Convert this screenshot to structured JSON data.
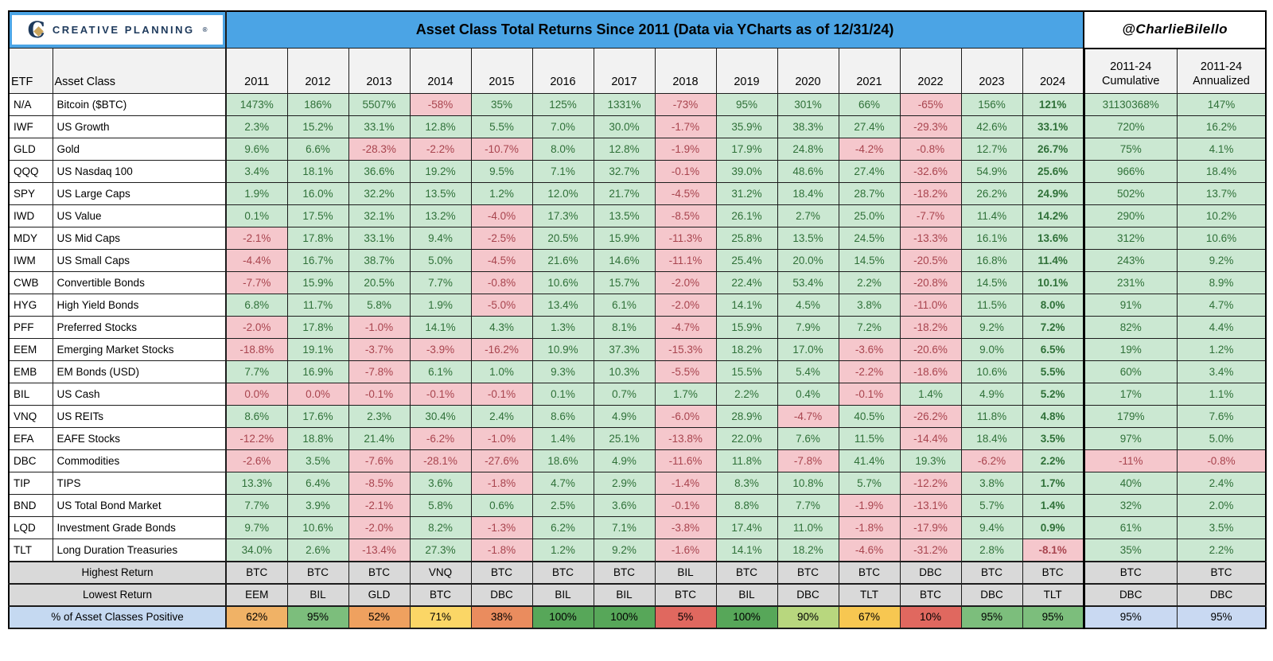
{
  "brand": {
    "name": "CREATIVE PLANNING",
    "reg": "®",
    "logo_letter": "C"
  },
  "header": {
    "title": "Asset Class Total Returns Since 2011 (Data via YCharts as of 12/31/24)",
    "handle": "@CharlieBilello"
  },
  "colors": {
    "header_blue": "#4BA4E5",
    "positive_bg": "#CBE8D2",
    "positive_text": "#2F7038",
    "negative_bg": "#F5C7CC",
    "negative_text": "#A8444E",
    "summary_gray": "#D9D9D9",
    "label_blue": "#C5D9F1",
    "positive_summary_blue": "#C9D9F2",
    "year2024_header_gray": "#BDBDBD",
    "brand_navy": "#1E3A5C",
    "brand_gold": "#C9A45C"
  },
  "chart_data": {
    "type": "table",
    "title": "Asset Class Total Returns Since 2011 (Data via YCharts as of 12/31/24)",
    "columns": {
      "etf": "ETF",
      "asset_class": "Asset Class",
      "years": [
        "2011",
        "2012",
        "2013",
        "2014",
        "2015",
        "2016",
        "2017",
        "2018",
        "2019",
        "2020",
        "2021",
        "2022",
        "2023",
        "2024"
      ],
      "cumulative_line1": "2011-24",
      "cumulative_line2": "Cumulative",
      "annualized_line1": "2011-24",
      "annualized_line2": "Annualized"
    },
    "series": [
      {
        "etf": "N/A",
        "asset": "Bitcoin ($BTC)",
        "values": [
          "1473%",
          "186%",
          "5507%",
          "-58%",
          "35%",
          "125%",
          "1331%",
          "-73%",
          "95%",
          "301%",
          "66%",
          "-65%",
          "156%",
          "121%"
        ],
        "cumulative": "31130368%",
        "annualized": "147%"
      },
      {
        "etf": "IWF",
        "asset": "US Growth",
        "values": [
          "2.3%",
          "15.2%",
          "33.1%",
          "12.8%",
          "5.5%",
          "7.0%",
          "30.0%",
          "-1.7%",
          "35.9%",
          "38.3%",
          "27.4%",
          "-29.3%",
          "42.6%",
          "33.1%"
        ],
        "cumulative": "720%",
        "annualized": "16.2%"
      },
      {
        "etf": "GLD",
        "asset": "Gold",
        "values": [
          "9.6%",
          "6.6%",
          "-28.3%",
          "-2.2%",
          "-10.7%",
          "8.0%",
          "12.8%",
          "-1.9%",
          "17.9%",
          "24.8%",
          "-4.2%",
          "-0.8%",
          "12.7%",
          "26.7%"
        ],
        "cumulative": "75%",
        "annualized": "4.1%"
      },
      {
        "etf": "QQQ",
        "asset": "US Nasdaq 100",
        "values": [
          "3.4%",
          "18.1%",
          "36.6%",
          "19.2%",
          "9.5%",
          "7.1%",
          "32.7%",
          "-0.1%",
          "39.0%",
          "48.6%",
          "27.4%",
          "-32.6%",
          "54.9%",
          "25.6%"
        ],
        "cumulative": "966%",
        "annualized": "18.4%"
      },
      {
        "etf": "SPY",
        "asset": "US Large Caps",
        "values": [
          "1.9%",
          "16.0%",
          "32.2%",
          "13.5%",
          "1.2%",
          "12.0%",
          "21.7%",
          "-4.5%",
          "31.2%",
          "18.4%",
          "28.7%",
          "-18.2%",
          "26.2%",
          "24.9%"
        ],
        "cumulative": "502%",
        "annualized": "13.7%"
      },
      {
        "etf": "IWD",
        "asset": "US Value",
        "values": [
          "0.1%",
          "17.5%",
          "32.1%",
          "13.2%",
          "-4.0%",
          "17.3%",
          "13.5%",
          "-8.5%",
          "26.1%",
          "2.7%",
          "25.0%",
          "-7.7%",
          "11.4%",
          "14.2%"
        ],
        "cumulative": "290%",
        "annualized": "10.2%"
      },
      {
        "etf": "MDY",
        "asset": "US Mid Caps",
        "values": [
          "-2.1%",
          "17.8%",
          "33.1%",
          "9.4%",
          "-2.5%",
          "20.5%",
          "15.9%",
          "-11.3%",
          "25.8%",
          "13.5%",
          "24.5%",
          "-13.3%",
          "16.1%",
          "13.6%"
        ],
        "cumulative": "312%",
        "annualized": "10.6%"
      },
      {
        "etf": "IWM",
        "asset": "US Small Caps",
        "values": [
          "-4.4%",
          "16.7%",
          "38.7%",
          "5.0%",
          "-4.5%",
          "21.6%",
          "14.6%",
          "-11.1%",
          "25.4%",
          "20.0%",
          "14.5%",
          "-20.5%",
          "16.8%",
          "11.4%"
        ],
        "cumulative": "243%",
        "annualized": "9.2%"
      },
      {
        "etf": "CWB",
        "asset": "Convertible Bonds",
        "values": [
          "-7.7%",
          "15.9%",
          "20.5%",
          "7.7%",
          "-0.8%",
          "10.6%",
          "15.7%",
          "-2.0%",
          "22.4%",
          "53.4%",
          "2.2%",
          "-20.8%",
          "14.5%",
          "10.1%"
        ],
        "cumulative": "231%",
        "annualized": "8.9%"
      },
      {
        "etf": "HYG",
        "asset": "High Yield Bonds",
        "values": [
          "6.8%",
          "11.7%",
          "5.8%",
          "1.9%",
          "-5.0%",
          "13.4%",
          "6.1%",
          "-2.0%",
          "14.1%",
          "4.5%",
          "3.8%",
          "-11.0%",
          "11.5%",
          "8.0%"
        ],
        "cumulative": "91%",
        "annualized": "4.7%"
      },
      {
        "etf": "PFF",
        "asset": "Preferred Stocks",
        "values": [
          "-2.0%",
          "17.8%",
          "-1.0%",
          "14.1%",
          "4.3%",
          "1.3%",
          "8.1%",
          "-4.7%",
          "15.9%",
          "7.9%",
          "7.2%",
          "-18.2%",
          "9.2%",
          "7.2%"
        ],
        "cumulative": "82%",
        "annualized": "4.4%"
      },
      {
        "etf": "EEM",
        "asset": "Emerging Market Stocks",
        "values": [
          "-18.8%",
          "19.1%",
          "-3.7%",
          "-3.9%",
          "-16.2%",
          "10.9%",
          "37.3%",
          "-15.3%",
          "18.2%",
          "17.0%",
          "-3.6%",
          "-20.6%",
          "9.0%",
          "6.5%"
        ],
        "cumulative": "19%",
        "annualized": "1.2%"
      },
      {
        "etf": "EMB",
        "asset": "EM Bonds (USD)",
        "values": [
          "7.7%",
          "16.9%",
          "-7.8%",
          "6.1%",
          "1.0%",
          "9.3%",
          "10.3%",
          "-5.5%",
          "15.5%",
          "5.4%",
          "-2.2%",
          "-18.6%",
          "10.6%",
          "5.5%"
        ],
        "cumulative": "60%",
        "annualized": "3.4%"
      },
      {
        "etf": "BIL",
        "asset": "US Cash",
        "values": [
          "0.0%",
          "0.0%",
          "-0.1%",
          "-0.1%",
          "-0.1%",
          "0.1%",
          "0.7%",
          "1.7%",
          "2.2%",
          "0.4%",
          "-0.1%",
          "1.4%",
          "4.9%",
          "5.2%"
        ],
        "cumulative": "17%",
        "annualized": "1.1%"
      },
      {
        "etf": "VNQ",
        "asset": "US REITs",
        "values": [
          "8.6%",
          "17.6%",
          "2.3%",
          "30.4%",
          "2.4%",
          "8.6%",
          "4.9%",
          "-6.0%",
          "28.9%",
          "-4.7%",
          "40.5%",
          "-26.2%",
          "11.8%",
          "4.8%"
        ],
        "cumulative": "179%",
        "annualized": "7.6%"
      },
      {
        "etf": "EFA",
        "asset": "EAFE Stocks",
        "values": [
          "-12.2%",
          "18.8%",
          "21.4%",
          "-6.2%",
          "-1.0%",
          "1.4%",
          "25.1%",
          "-13.8%",
          "22.0%",
          "7.6%",
          "11.5%",
          "-14.4%",
          "18.4%",
          "3.5%"
        ],
        "cumulative": "97%",
        "annualized": "5.0%"
      },
      {
        "etf": "DBC",
        "asset": "Commodities",
        "values": [
          "-2.6%",
          "3.5%",
          "-7.6%",
          "-28.1%",
          "-27.6%",
          "18.6%",
          "4.9%",
          "-11.6%",
          "11.8%",
          "-7.8%",
          "41.4%",
          "19.3%",
          "-6.2%",
          "2.2%"
        ],
        "cumulative": "-11%",
        "annualized": "-0.8%"
      },
      {
        "etf": "TIP",
        "asset": "TIPS",
        "values": [
          "13.3%",
          "6.4%",
          "-8.5%",
          "3.6%",
          "-1.8%",
          "4.7%",
          "2.9%",
          "-1.4%",
          "8.3%",
          "10.8%",
          "5.7%",
          "-12.2%",
          "3.8%",
          "1.7%"
        ],
        "cumulative": "40%",
        "annualized": "2.4%"
      },
      {
        "etf": "BND",
        "asset": "US Total Bond Market",
        "values": [
          "7.7%",
          "3.9%",
          "-2.1%",
          "5.8%",
          "0.6%",
          "2.5%",
          "3.6%",
          "-0.1%",
          "8.8%",
          "7.7%",
          "-1.9%",
          "-13.1%",
          "5.7%",
          "1.4%"
        ],
        "cumulative": "32%",
        "annualized": "2.0%"
      },
      {
        "etf": "LQD",
        "asset": "Investment Grade Bonds",
        "values": [
          "9.7%",
          "10.6%",
          "-2.0%",
          "8.2%",
          "-1.3%",
          "6.2%",
          "7.1%",
          "-3.8%",
          "17.4%",
          "11.0%",
          "-1.8%",
          "-17.9%",
          "9.4%",
          "0.9%"
        ],
        "cumulative": "61%",
        "annualized": "3.5%"
      },
      {
        "etf": "TLT",
        "asset": "Long Duration Treasuries",
        "values": [
          "34.0%",
          "2.6%",
          "-13.4%",
          "27.3%",
          "-1.8%",
          "1.2%",
          "9.2%",
          "-1.6%",
          "14.1%",
          "18.2%",
          "-4.6%",
          "-31.2%",
          "2.8%",
          "-8.1%"
        ],
        "cumulative": "35%",
        "annualized": "2.2%"
      }
    ],
    "footer": {
      "highest": {
        "label": "Highest Return",
        "values": [
          "BTC",
          "BTC",
          "BTC",
          "VNQ",
          "BTC",
          "BTC",
          "BTC",
          "BIL",
          "BTC",
          "BTC",
          "BTC",
          "DBC",
          "BTC",
          "BTC"
        ],
        "cumulative": "BTC",
        "annualized": "BTC"
      },
      "lowest": {
        "label": "Lowest Return",
        "values": [
          "EEM",
          "BIL",
          "GLD",
          "BTC",
          "DBC",
          "BIL",
          "BIL",
          "BTC",
          "BIL",
          "DBC",
          "TLT",
          "BTC",
          "DBC",
          "TLT"
        ],
        "cumulative": "DBC",
        "annualized": "DBC"
      },
      "positive": {
        "label": "% of Asset Classes Positive",
        "values": [
          "62%",
          "95%",
          "52%",
          "71%",
          "38%",
          "100%",
          "100%",
          "5%",
          "100%",
          "90%",
          "67%",
          "10%",
          "95%",
          "95%"
        ],
        "colors": [
          "#F0B266",
          "#7CBE7C",
          "#EFA15F",
          "#FBD666",
          "#EA8C5E",
          "#57A759",
          "#57A759",
          "#E0685F",
          "#57A759",
          "#B8D77E",
          "#F7C751",
          "#E0685F",
          "#7CBE7C",
          "#7CBE7C"
        ],
        "cumulative": "95%",
        "annualized": "95%"
      }
    }
  }
}
